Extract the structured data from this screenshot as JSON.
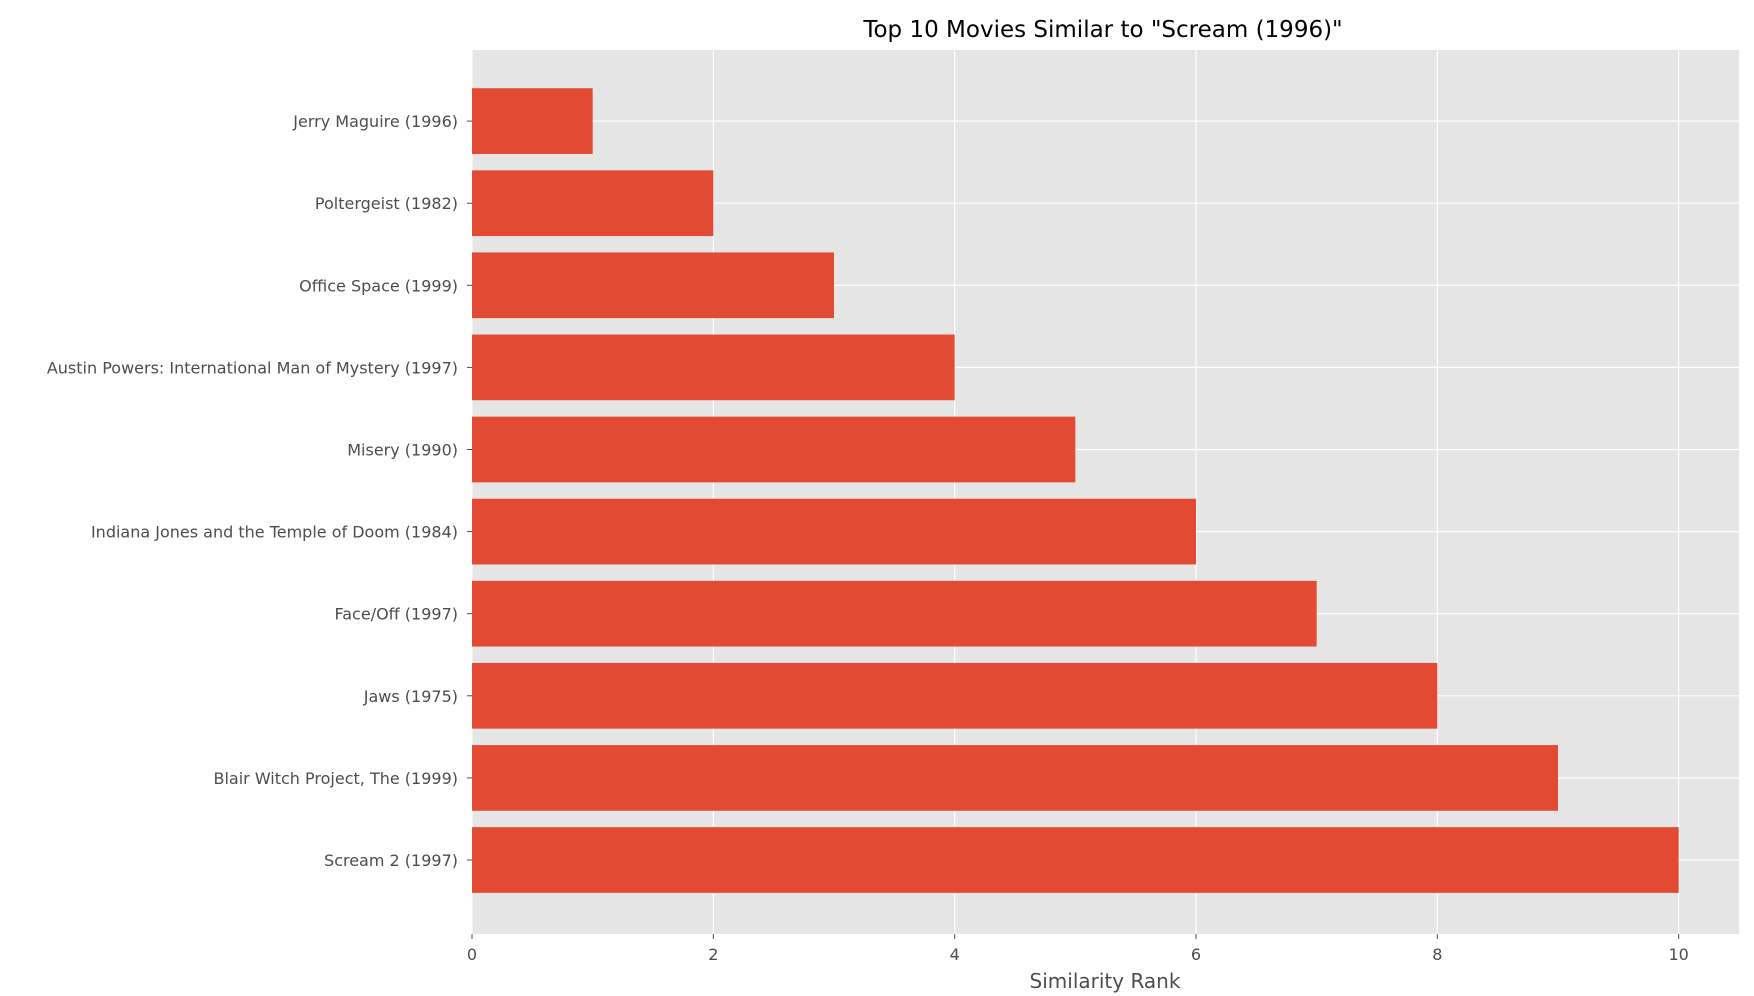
{
  "chart_data": {
    "type": "bar",
    "orientation": "horizontal",
    "title": "Top 10 Movies Similar to \"Scream (1996)\"",
    "xlabel": "Similarity Rank",
    "ylabel": "",
    "categories": [
      "Scream 2 (1997)",
      "Blair Witch Project, The (1999)",
      "Jaws (1975)",
      "Face/Off (1997)",
      "Indiana Jones and the Temple of Doom (1984)",
      "Misery (1990)",
      "Austin Powers: International Man of Mystery (1997)",
      "Office Space (1999)",
      "Poltergeist (1982)",
      "Jerry Maguire (1996)"
    ],
    "values": [
      10,
      9,
      8,
      7,
      6,
      5,
      4,
      3,
      2,
      1
    ],
    "xlim": [
      0,
      10.5
    ],
    "xticks": [
      0,
      2,
      4,
      6,
      8,
      10
    ],
    "grid": true,
    "colors": {
      "bar": "#E24A33",
      "plot_background": "#E5E5E5",
      "grid": "#FFFFFF",
      "tick_text": "#4D4D4D"
    }
  }
}
